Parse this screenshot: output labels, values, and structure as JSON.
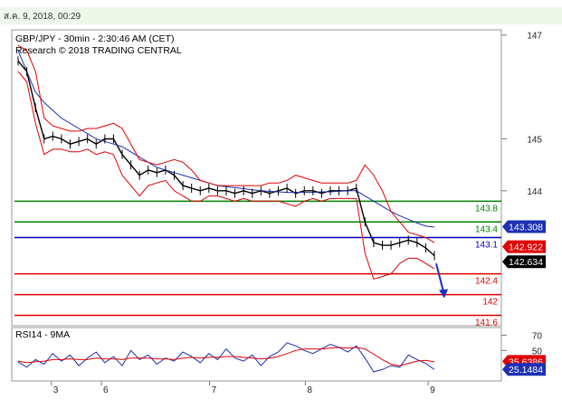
{
  "datetime": "ส.ค. 9, 2018, 00:29",
  "chart_data": [
    {
      "type": "line",
      "title": "GBP/JPY - 30min - 2:30:46 AM (CET)",
      "subtitle": "Research © 2018 TRADING CENTRAL",
      "ylim": [
        141.4,
        147.1
      ],
      "y_ticks": [
        "147",
        "145",
        "144"
      ],
      "y_tick_values": [
        147,
        145,
        144
      ],
      "x_ticks": [
        "3",
        "6",
        "7",
        "8",
        "9"
      ],
      "x_tick_positions": [
        0.08,
        0.2,
        0.46,
        0.69,
        0.985
      ],
      "grid": false,
      "series": [
        {
          "values": [
            146.5,
            146.3,
            145.6,
            145.0,
            145.05,
            145.0,
            144.9,
            144.95,
            145.0,
            144.9,
            145.0,
            145.0,
            144.7,
            144.5,
            144.3,
            144.4,
            144.35,
            144.4,
            144.3,
            144.1,
            144.05,
            144.0,
            144.05,
            144.0,
            144.0,
            143.95,
            144.0,
            143.95,
            144.0,
            143.95,
            144.0,
            144.05,
            143.95,
            144.0,
            144.0,
            143.95,
            144.0,
            144.0,
            144.0,
            144.05,
            143.4,
            143.0,
            142.95,
            142.95,
            143.0,
            143.05,
            143.0,
            142.9,
            142.75
          ]
        },
        {
          "values": [
            146.7,
            146.3,
            145.9,
            145.7,
            145.55,
            145.4,
            145.3,
            145.2,
            145.1,
            145.0,
            144.95,
            144.9,
            144.85,
            144.75,
            144.65,
            144.55,
            144.45,
            144.4,
            144.35,
            144.3,
            144.25,
            144.2,
            144.15,
            144.1,
            144.08,
            144.06,
            144.04,
            144.02,
            144.0,
            143.99,
            143.98,
            143.97,
            143.97,
            143.97,
            143.97,
            143.98,
            143.98,
            143.99,
            144.0,
            144.0,
            143.9,
            143.8,
            143.7,
            143.6,
            143.52,
            143.45,
            143.38,
            143.32,
            143.3
          ]
        },
        {
          "values": [
            146.8,
            146.7,
            146.3,
            145.4,
            145.25,
            145.2,
            145.15,
            145.15,
            145.2,
            145.2,
            145.25,
            145.3,
            145.2,
            144.9,
            144.6,
            144.55,
            144.5,
            144.55,
            144.6,
            144.55,
            144.4,
            144.2,
            144.15,
            144.1,
            144.1,
            144.1,
            144.1,
            144.1,
            144.1,
            144.15,
            144.15,
            144.2,
            144.3,
            144.25,
            144.2,
            144.15,
            144.15,
            144.15,
            144.15,
            144.2,
            144.5,
            144.3,
            144.0,
            143.6,
            143.4,
            143.2,
            143.15,
            143.1,
            143.0
          ]
        },
        {
          "values": [
            146.3,
            146.1,
            145.3,
            144.7,
            144.8,
            144.8,
            144.75,
            144.75,
            144.8,
            144.7,
            144.75,
            144.7,
            144.3,
            144.1,
            143.9,
            144.1,
            144.15,
            144.2,
            144.0,
            143.9,
            143.8,
            143.8,
            143.9,
            143.9,
            143.85,
            143.8,
            143.85,
            143.8,
            143.8,
            143.8,
            143.8,
            143.75,
            143.7,
            143.8,
            143.85,
            143.8,
            143.85,
            143.85,
            143.85,
            143.85,
            142.8,
            142.3,
            142.35,
            142.4,
            142.6,
            142.7,
            142.7,
            142.6,
            142.5
          ]
        }
      ],
      "levels": [
        {
          "label": "143.8",
          "value": 143.8,
          "color": "#008000"
        },
        {
          "label": "143.4",
          "value": 143.4,
          "color": "#008000"
        },
        {
          "label": "143.1",
          "value": 143.1,
          "color": "#0000c0"
        },
        {
          "label": "142.4",
          "value": 142.4,
          "color": "#e00000"
        },
        {
          "label": "142",
          "value": 142.0,
          "color": "#e00000"
        },
        {
          "label": "141.6",
          "value": 141.6,
          "color": "#e00000"
        }
      ],
      "price_tags": [
        {
          "label": "143.308",
          "value": 143.308,
          "color": "#1c2fb5"
        },
        {
          "label": "142.922",
          "value": 142.922,
          "color": "#e00000"
        },
        {
          "label": "142.634",
          "value": 142.634,
          "color": "#000000"
        }
      ],
      "projection_arrow": {
        "from": 142.6,
        "to": 141.95,
        "color": "#1c2fb5"
      }
    },
    {
      "type": "line",
      "title": "RSI14 - 9MA",
      "ylim": [
        10,
        80
      ],
      "y_ticks": [
        "70",
        "50"
      ],
      "y_tick_values": [
        70,
        50
      ],
      "series": [
        {
          "values": [
            35,
            28,
            38,
            32,
            46,
            36,
            44,
            30,
            40,
            48,
            34,
            42,
            30,
            50,
            38,
            44,
            32,
            40,
            36,
            48,
            42,
            34,
            46,
            38,
            52,
            40,
            36,
            44,
            30,
            42,
            48,
            60,
            56,
            50,
            46,
            52,
            58,
            54,
            48,
            56,
            40,
            22,
            25,
            30,
            28,
            44,
            38,
            33,
            25
          ]
        },
        {
          "values": [
            36,
            34,
            35,
            36,
            38,
            38,
            39,
            38,
            38,
            40,
            39,
            39,
            38,
            40,
            40,
            40,
            39,
            39,
            38,
            40,
            41,
            40,
            41,
            41,
            42,
            42,
            41,
            40,
            39,
            40,
            42,
            46,
            50,
            52,
            52,
            52,
            53,
            54,
            53,
            54,
            52,
            45,
            38,
            32,
            30,
            33,
            36,
            37,
            35
          ]
        }
      ],
      "price_tags": [
        {
          "label": "35.6386",
          "value": 35.6386,
          "color": "#e00000"
        },
        {
          "label": "25.1484",
          "value": 25.1484,
          "color": "#1c2fb5"
        }
      ]
    }
  ],
  "colors": {
    "price": "#000000",
    "ma": "#1c2fb5",
    "bands": "#e00000",
    "rsi": "#1c2fb5",
    "rsi_ma": "#e00000"
  }
}
